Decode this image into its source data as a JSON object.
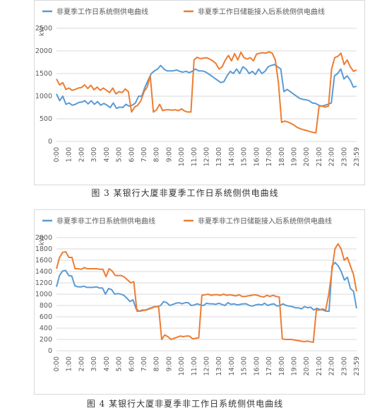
{
  "chart_data": [
    {
      "type": "line",
      "unit": "kW",
      "caption": "图 3 某银行大厦非夏季工作日系统侧供电曲线",
      "ylim": [
        0,
        2500
      ],
      "y_ticks": [
        0,
        500,
        1000,
        1500,
        2000,
        2500
      ],
      "x_ticks": [
        "0:00",
        "1:00",
        "2:00",
        "3:00",
        "4:00",
        "5:00",
        "6:00",
        "7:00",
        "8:00",
        "9:00",
        "10:00",
        "11:00",
        "12:00",
        "13:00",
        "14:00",
        "15:00",
        "16:00",
        "17:00",
        "18:00",
        "19:00",
        "20:00",
        "21:00",
        "22:00",
        "23:00",
        "23:59"
      ],
      "grid": "horizontal",
      "legend": "top",
      "series": [
        {
          "name": "非夏季工作日系统侧供电曲线",
          "color": "#5b9bd5",
          "values": [
            1050,
            900,
            1000,
            820,
            850,
            800,
            820,
            860,
            870,
            900,
            830,
            900,
            820,
            880,
            800,
            840,
            800,
            750,
            850,
            730,
            760,
            750,
            820,
            780,
            800,
            850,
            1000,
            1000,
            1200,
            1350,
            1500,
            1560,
            1600,
            1680,
            1600,
            1560,
            1560,
            1560,
            1580,
            1550,
            1530,
            1550,
            1520,
            1550,
            1600,
            1560,
            1560,
            1540,
            1500,
            1450,
            1400,
            1350,
            1300,
            1320,
            1450,
            1550,
            1500,
            1600,
            1500,
            1650,
            1600,
            1500,
            1550,
            1480,
            1600,
            1500,
            1550,
            1650,
            1680,
            1700,
            1650,
            1600,
            1100,
            1150,
            1100,
            1050,
            1000,
            950,
            930,
            920,
            900,
            850,
            840,
            800,
            780,
            800,
            820,
            850,
            1450,
            1500,
            1600,
            1380,
            1450,
            1350,
            1200,
            1220
          ]
        },
        {
          "name": "非夏季工作日储能接入后系统侧供电曲线",
          "color": "#ed7d31",
          "values": [
            1380,
            1250,
            1300,
            1150,
            1180,
            1130,
            1150,
            1180,
            1190,
            1250,
            1170,
            1240,
            1140,
            1200,
            1130,
            1180,
            1130,
            1080,
            1180,
            1050,
            1100,
            1080,
            1160,
            1100,
            650,
            760,
            800,
            900,
            1100,
            1200,
            1450,
            650,
            700,
            820,
            680,
            700,
            700,
            690,
            700,
            680,
            720,
            670,
            650,
            650,
            1800,
            1860,
            1830,
            1840,
            1850,
            1820,
            1780,
            1720,
            1600,
            1650,
            1800,
            1900,
            1780,
            1940,
            1800,
            1970,
            1850,
            1820,
            1850,
            1780,
            1930,
            1950,
            1960,
            1950,
            1980,
            1950,
            1800,
            1300,
            420,
            450,
            430,
            400,
            360,
            310,
            280,
            260,
            240,
            220,
            200,
            190,
            780,
            780,
            760,
            780,
            1600,
            1850,
            1880,
            1950,
            1700,
            1800,
            1650,
            1550,
            1580
          ]
        }
      ]
    },
    {
      "type": "line",
      "unit": "kW",
      "caption": "图 4 某银行大厦非夏季非工作日系统侧供电曲线",
      "ylim": [
        0,
        2000
      ],
      "y_ticks": [
        0,
        200,
        400,
        600,
        800,
        1000,
        1200,
        1400,
        1600,
        1800,
        2000
      ],
      "x_ticks": [
        "0:00",
        "1:00",
        "2:00",
        "3:00",
        "4:00",
        "5:00",
        "6:00",
        "7:00",
        "8:00",
        "9:00",
        "10:00",
        "11:00",
        "12:00",
        "13:00",
        "14:00",
        "15:00",
        "16:00",
        "17:00",
        "18:00",
        "19:00",
        "20:00",
        "21:00",
        "22:00",
        "23:00",
        "23:59"
      ],
      "grid": "horizontal",
      "legend": "top",
      "series": [
        {
          "name": "非夏季非工作日系统侧供电曲线",
          "color": "#5b9bd5",
          "values": [
            1130,
            1330,
            1410,
            1420,
            1330,
            1320,
            1150,
            1130,
            1130,
            1140,
            1120,
            1120,
            1120,
            1130,
            1110,
            1110,
            1000,
            1100,
            1080,
            1000,
            1010,
            1000,
            980,
            930,
            870,
            900,
            740,
            700,
            720,
            720,
            740,
            760,
            780,
            780,
            800,
            870,
            850,
            800,
            820,
            840,
            850,
            830,
            850,
            850,
            800,
            810,
            830,
            810,
            800,
            840,
            830,
            830,
            820,
            840,
            820,
            800,
            850,
            820,
            830,
            810,
            820,
            830,
            830,
            800,
            790,
            810,
            820,
            810,
            840,
            800,
            820,
            830,
            790,
            800,
            830,
            800,
            790,
            780,
            760,
            760,
            740,
            780,
            760,
            770,
            720,
            750,
            730,
            720,
            700,
            700,
            1500,
            1560,
            1500,
            1400,
            1250,
            1300,
            1100,
            1050,
            750
          ]
        },
        {
          "name": "非夏季非工作日储能接入后系统侧供电曲线",
          "color": "#ed7d31",
          "values": [
            1450,
            1650,
            1740,
            1750,
            1650,
            1650,
            1450,
            1450,
            1440,
            1470,
            1450,
            1450,
            1450,
            1450,
            1440,
            1440,
            1310,
            1450,
            1410,
            1330,
            1330,
            1330,
            1300,
            1250,
            1200,
            1220,
            700,
            700,
            710,
            720,
            740,
            760,
            780,
            780,
            200,
            280,
            250,
            200,
            220,
            240,
            260,
            250,
            260,
            260,
            210,
            220,
            230,
            980,
            990,
            1000,
            980,
            990,
            990,
            980,
            1000,
            980,
            990,
            980,
            970,
            990,
            960,
            960,
            970,
            980,
            990,
            980,
            960,
            950,
            980,
            960,
            980,
            960,
            950,
            210,
            200,
            200,
            200,
            190,
            180,
            170,
            160,
            170,
            160,
            150,
            720,
            720,
            740,
            720,
            1000,
            1400,
            1800,
            1890,
            1800,
            1600,
            1650,
            1500,
            1350,
            1050
          ]
        }
      ]
    }
  ]
}
